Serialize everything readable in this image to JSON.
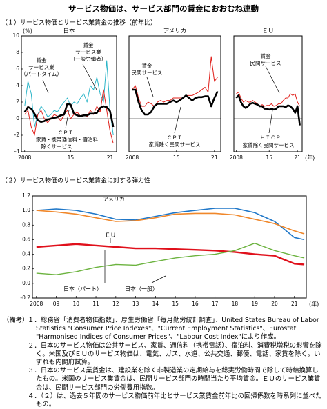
{
  "title": "サービス物価は、サービス部門の賃金におおむね連動",
  "section1": "（１）サービス物価とサービス業賃金の推移（前年比）",
  "section2": "（２）サービス物価のサービス業賃金に対する弾力性",
  "chart_data": [
    {
      "type": "line",
      "title": "日本",
      "y_unit": "(%)",
      "x": [
        2008,
        2008.5,
        2009,
        2009.5,
        2010,
        2010.5,
        2011,
        2011.5,
        2012,
        2012.5,
        2013,
        2013.5,
        2014,
        2014.5,
        2015,
        2015.5,
        2016,
        2016.5,
        2017,
        2017.5,
        2018,
        2018.5,
        2019,
        2019.5,
        2020,
        2020.5,
        2021,
        2021.5
      ],
      "xlim": [
        2007.5,
        2022
      ],
      "xticks": [
        2008,
        {
          "value": 2015,
          "label": "15"
        },
        {
          "value": 2021,
          "label": "21"
        }
      ],
      "ylim": [
        -4,
        10
      ],
      "yticks": [
        10,
        8,
        6,
        4,
        2,
        0,
        -2,
        -4
      ],
      "zero_line": true,
      "series": [
        {
          "color": "#2bb5c8",
          "width": 1,
          "values": [
            1.5,
            4.5,
            3.0,
            -1.0,
            0.5,
            1.5,
            1.0,
            0.2,
            0.5,
            1.0,
            0.8,
            1.5,
            2.0,
            2.5,
            1.5,
            2.0,
            1.8,
            2.5,
            3.0,
            2.0,
            4.0,
            3.5,
            5.0,
            3.0,
            2.0,
            7.0,
            1.0,
            -2.0
          ]
        },
        {
          "color": "#e0201b",
          "width": 1,
          "values": [
            0.5,
            1.0,
            -1.0,
            -2.0,
            0.5,
            1.0,
            0.0,
            -0.5,
            0.0,
            0.5,
            0.3,
            -0.3,
            0.5,
            1.0,
            0.0,
            0.5,
            0.8,
            0.3,
            0.5,
            0.2,
            1.0,
            0.5,
            1.5,
            0.8,
            3.5,
            1.0,
            -1.5,
            -3.0
          ]
        },
        {
          "color": "#000000",
          "width": 2.6,
          "values": [
            0.8,
            1.4,
            1.2,
            0.6,
            -0.2,
            -0.4,
            -0.3,
            -0.1,
            0.0,
            0.1,
            0.2,
            0.4,
            0.5,
            1.8,
            1.7,
            0.6,
            0.4,
            0.3,
            0.4,
            0.4,
            0.6,
            0.6,
            0.7,
            1.3,
            1.5,
            1.4,
            0.9,
            -1.0
          ]
        }
      ],
      "annotations": [
        "賃金",
        "サービス業",
        "（パートタイム）",
        "賃金",
        "サービス業",
        "（一般労働者）",
        "ＣＰＩ",
        "家賃・携帯通信料・宿泊料",
        "除くサービス"
      ]
    },
    {
      "type": "line",
      "title": "アメリカ",
      "x": [
        2008,
        2008.5,
        2009,
        2009.5,
        2010,
        2010.5,
        2011,
        2011.5,
        2012,
        2012.5,
        2013,
        2013.5,
        2014,
        2014.5,
        2015,
        2015.5,
        2016,
        2016.5,
        2017,
        2017.5,
        2018,
        2018.5,
        2019,
        2019.5,
        2020,
        2020.5,
        2021,
        2021.5
      ],
      "xlim": [
        2007.5,
        2022
      ],
      "xticks": [
        2008,
        {
          "value": 2015,
          "label": "15"
        },
        {
          "value": 2021,
          "label": "21"
        }
      ],
      "ylim": [
        -4,
        10
      ],
      "zero_line": true,
      "series": [
        {
          "color": "#e0201b",
          "width": 1,
          "values": [
            3.5,
            4.0,
            2.5,
            1.5,
            1.5,
            2.0,
            1.8,
            1.5,
            2.0,
            2.2,
            2.0,
            2.2,
            2.2,
            2.5,
            2.5,
            2.5,
            2.5,
            2.8,
            2.8,
            2.8,
            3.0,
            3.2,
            3.5,
            3.8,
            3.2,
            7.5,
            4.5,
            5.0
          ]
        },
        {
          "color": "#000000",
          "width": 2.6,
          "values": [
            3.5,
            3.5,
            2.0,
            1.0,
            0.5,
            0.5,
            0.8,
            1.5,
            1.8,
            1.8,
            1.8,
            1.8,
            2.0,
            2.2,
            2.0,
            2.2,
            2.5,
            2.8,
            2.5,
            2.2,
            2.5,
            2.6,
            2.6,
            2.7,
            2.7,
            1.5,
            2.5,
            3.3
          ]
        }
      ],
      "annotations": [
        "賃金",
        "民間サービス",
        "ＣＰＩ",
        "家賃除く民間サービス"
      ]
    },
    {
      "type": "line",
      "title": "ＥＵ",
      "x_unit": "(年)",
      "x": [
        2008,
        2008.5,
        2009,
        2009.5,
        2010,
        2010.5,
        2011,
        2011.5,
        2012,
        2012.5,
        2013,
        2013.5,
        2014,
        2014.5,
        2015,
        2015.5,
        2016,
        2016.5,
        2017,
        2017.5,
        2018,
        2018.5,
        2019,
        2019.5,
        2020,
        2020.5,
        2021,
        2021.5
      ],
      "xlim": [
        2007.5,
        2022
      ],
      "xticks": [
        2008,
        {
          "value": 2015,
          "label": "15"
        },
        {
          "value": 2021,
          "label": "21"
        }
      ],
      "ylim": [
        -4,
        10
      ],
      "zero_line": true,
      "series": [
        {
          "color": "#e0201b",
          "width": 1,
          "values": [
            3.0,
            3.2,
            2.5,
            2.0,
            2.2,
            2.0,
            2.0,
            2.2,
            2.0,
            1.8,
            1.5,
            1.7,
            1.5,
            1.6,
            1.6,
            1.8,
            1.5,
            1.6,
            1.8,
            1.8,
            2.2,
            2.5,
            2.5,
            3.0,
            2.8,
            3.0,
            2.0,
            1.5
          ]
        },
        {
          "color": "#000000",
          "width": 2.6,
          "values": [
            2.5,
            2.8,
            2.0,
            1.5,
            1.3,
            1.5,
            1.8,
            1.9,
            1.8,
            1.7,
            1.5,
            1.5,
            1.2,
            1.2,
            1.1,
            1.2,
            1.1,
            1.2,
            1.5,
            1.5,
            1.5,
            1.4,
            1.6,
            1.5,
            1.2,
            0.7,
            1.5,
            -0.8
          ]
        }
      ],
      "annotations": [
        "賃金",
        "民間サービス",
        "ＨＩＣＰ",
        "家賃除く民間サービス"
      ]
    },
    {
      "type": "line",
      "x_unit": "(年)",
      "x": [
        2008,
        2009,
        2010,
        2011,
        2012,
        2013,
        2014,
        2015,
        2016,
        2017,
        2018,
        2019,
        2020,
        2021,
        2021.5
      ],
      "xlim": [
        2007.8,
        2021.6
      ],
      "xticks": [
        2008,
        {
          "value": 2009,
          "label": "09"
        },
        {
          "value": 2010,
          "label": "10"
        },
        {
          "value": 2011,
          "label": "11"
        },
        {
          "value": 2012,
          "label": "12"
        },
        {
          "value": 2013,
          "label": "13"
        },
        {
          "value": 2014,
          "label": "14"
        },
        {
          "value": 2015,
          "label": "15"
        },
        {
          "value": 2016,
          "label": "16"
        },
        {
          "value": 2017,
          "label": "17"
        },
        {
          "value": 2018,
          "label": "18"
        },
        {
          "value": 2019,
          "label": "19"
        },
        {
          "value": 2020,
          "label": "20"
        },
        {
          "value": 2021,
          "label": "21"
        }
      ],
      "ylim": [
        -0.2,
        1.2
      ],
      "yticks": [
        1.2,
        {
          "value": 1,
          "label": "1.0"
        },
        0.8,
        0.6,
        0.4,
        0.2,
        {
          "value": 0,
          "label": "0.0"
        },
        -0.2
      ],
      "series": [
        {
          "color": "#1f77c8",
          "width": 1.6,
          "values": [
            1.0,
            1.02,
            1.0,
            0.95,
            0.88,
            0.87,
            0.92,
            0.97,
            1.0,
            1.03,
            1.03,
            0.97,
            0.85,
            0.63,
            0.6
          ]
        },
        {
          "color": "#f0872a",
          "width": 1.6,
          "values": [
            1.0,
            0.98,
            0.95,
            0.9,
            0.85,
            0.86,
            0.9,
            0.95,
            0.96,
            0.96,
            0.94,
            0.88,
            0.82,
            0.72,
            0.68
          ]
        },
        {
          "color": "#e0101b",
          "width": 2.4,
          "values": [
            0.5,
            0.52,
            0.54,
            0.52,
            0.5,
            0.48,
            0.48,
            0.47,
            0.46,
            0.45,
            0.43,
            0.4,
            0.38,
            0.27,
            0.26
          ]
        },
        {
          "color": "#6cb33f",
          "width": 1.4,
          "values": [
            0.14,
            0.12,
            0.16,
            0.22,
            0.26,
            0.25,
            0.3,
            0.35,
            0.38,
            0.4,
            0.45,
            0.55,
            0.45,
            0.38,
            0.35
          ]
        }
      ],
      "annotations": [
        "アメリカ",
        "ＥＵ",
        "日本（パート）",
        "日本（一般）"
      ]
    }
  ],
  "notes": {
    "label": "（備考）",
    "items": [
      "１．総務省「消費者物価指数」、厚生労働省「毎月勤労統計調査」、United States Bureau of Labor Statistics \"Consumer Price Indexes\"、\"Current Employment Statistics\"、Eurostat \"Harmonised Indices of Consumer Prices\"、\"Labour Cost Index\"により作成。",
      "２．日本のサービス物価は公共サービス、家賃、通信料（携帯電話）、宿泊料、消費税増税の影響を除く。米国及びＥＵのサービス物価は、電気、ガス、水道、公共交通、郵便、電話、家賃を除く。いずれも内閣府試算。",
      "３．日本のサービス業賃金は、建設業を除く非製造業の定期給与を総実労働時間で除して時給換算したもの。米国のサービス業賃金は、民間サービス部門の時間当たり平均賃金。ＥＵのサービス業賃金は、民間サービス部門の労働費用指数。",
      "４．（２）は、過去５年間のサービス物価前年比とサービス業賃金前年比の回帰係数を時系列に並べたもの。"
    ]
  }
}
